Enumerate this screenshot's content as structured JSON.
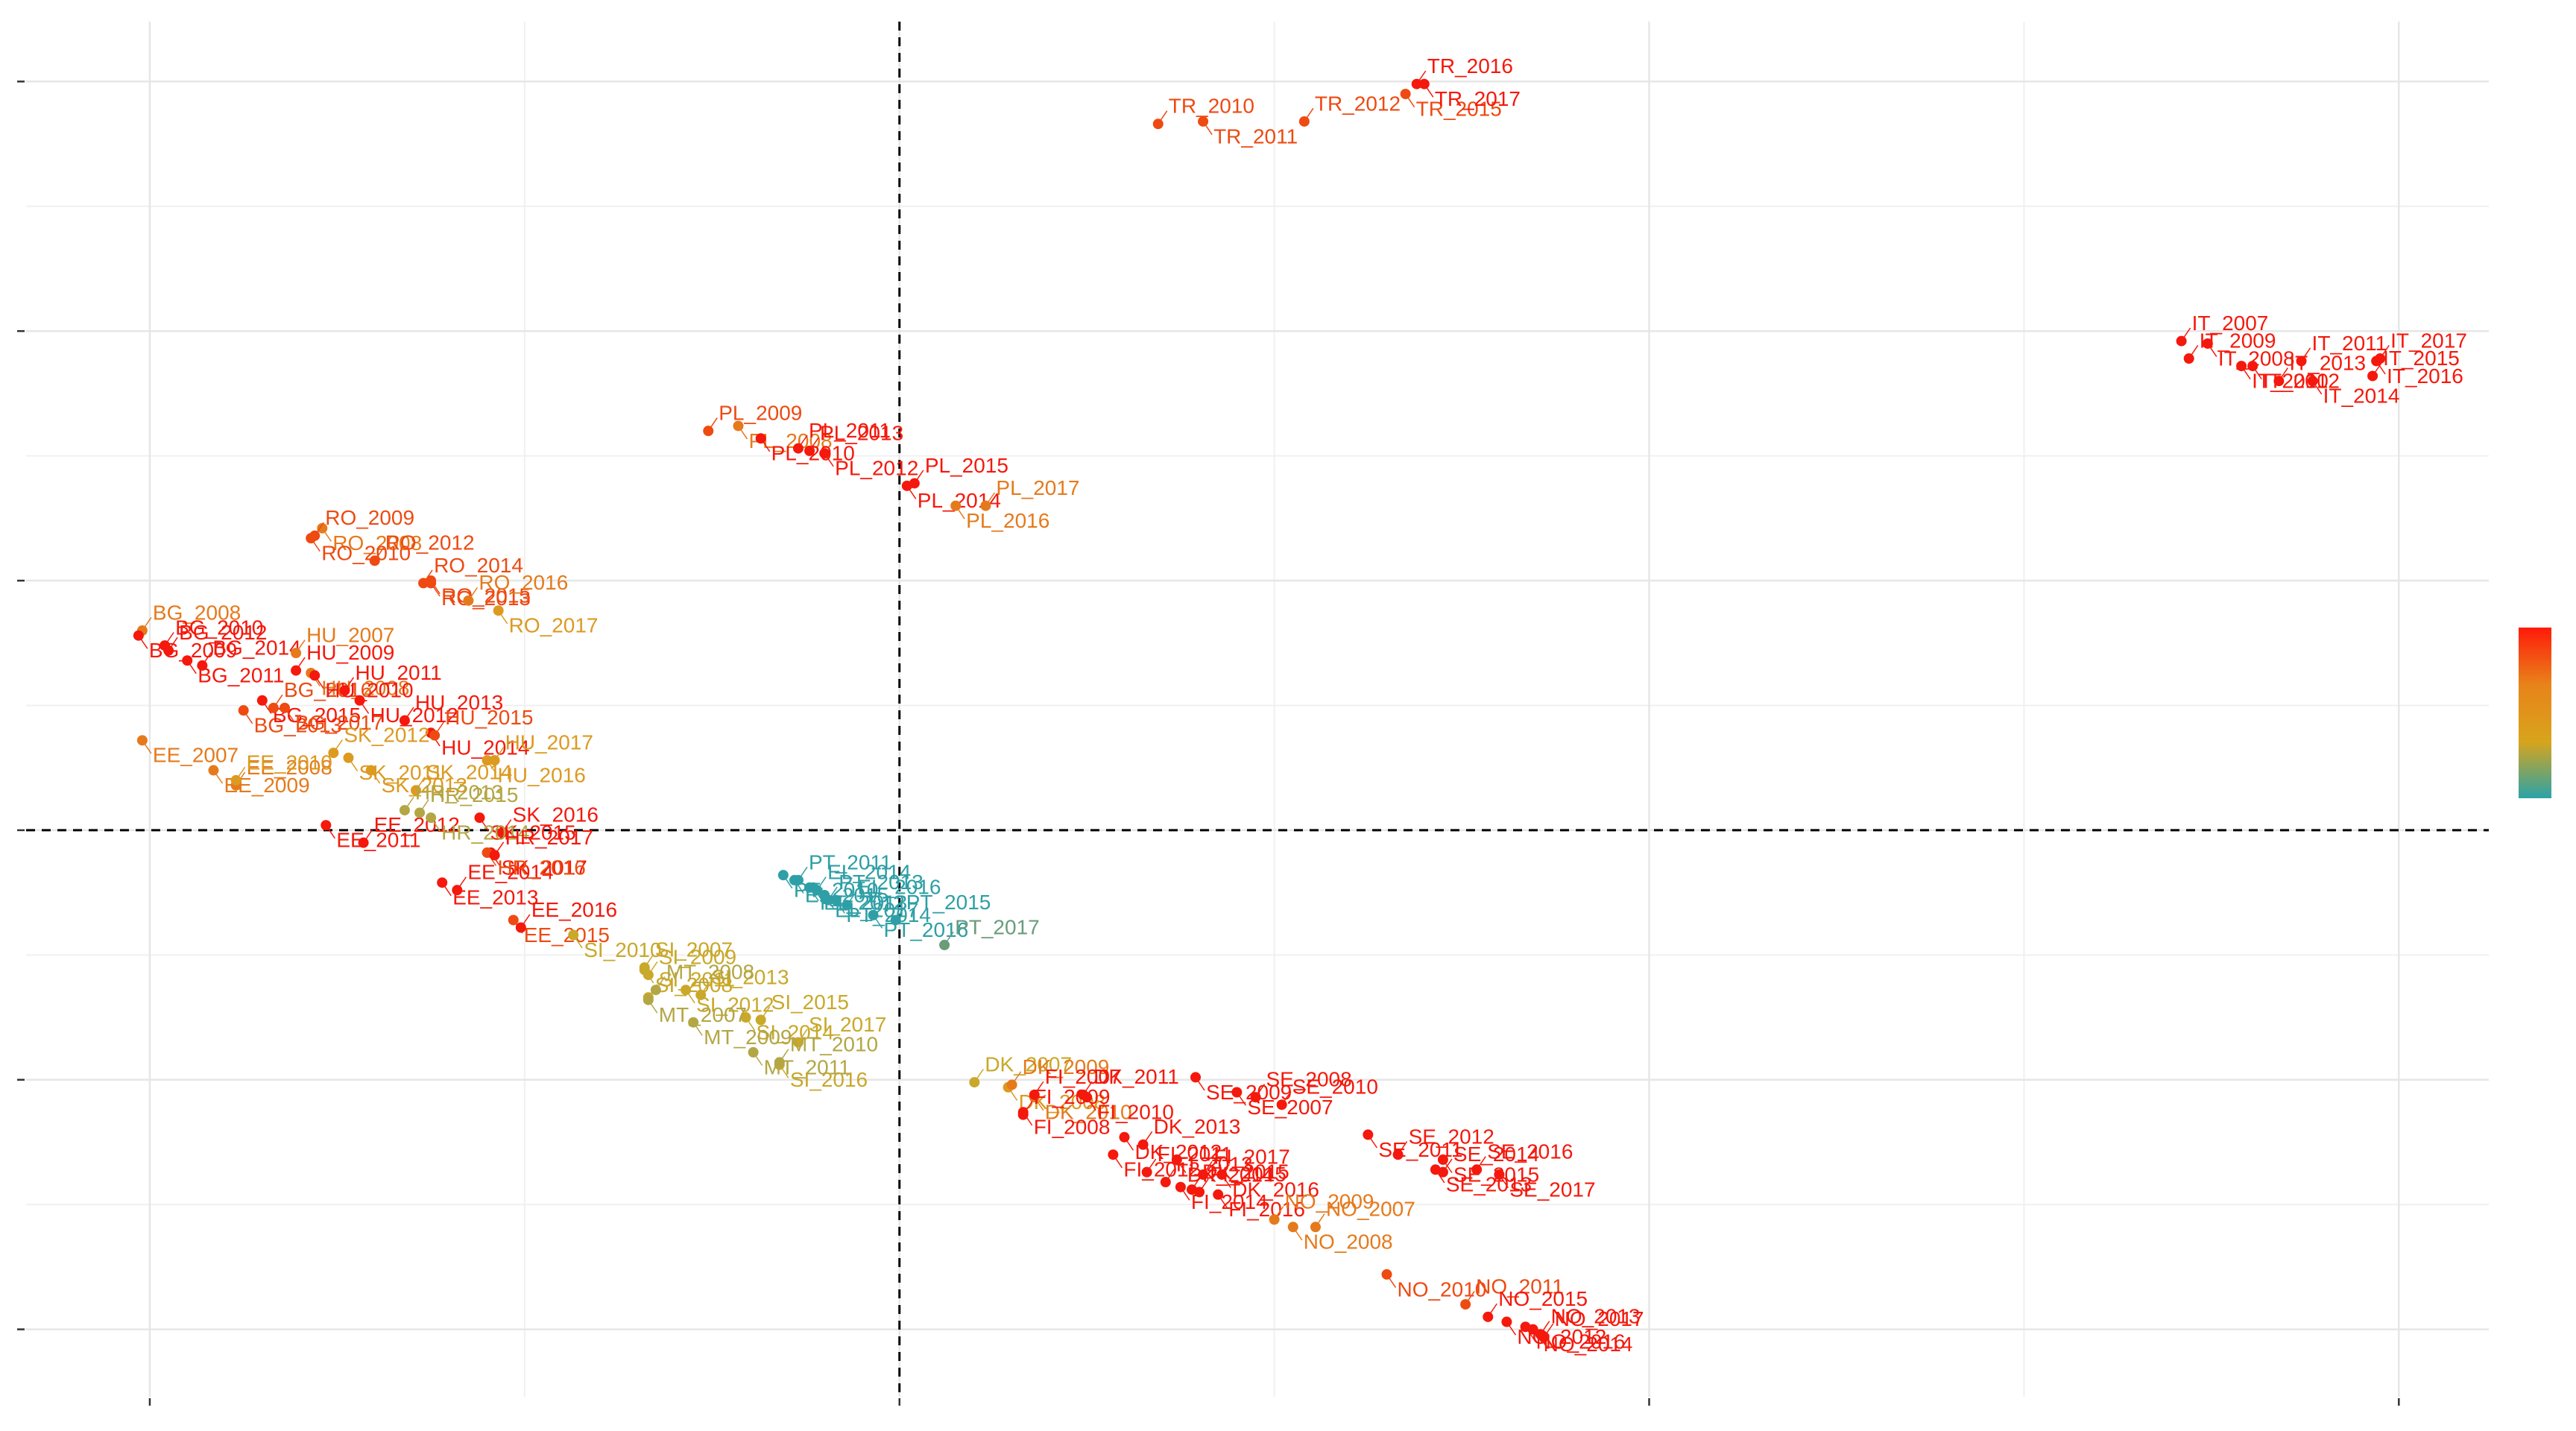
{
  "chart_data": {
    "type": "scatter",
    "xlim": [
      -2.33,
      4.24
    ],
    "ylim": [
      -2.27,
      3.24
    ],
    "xticks": [
      -2,
      0,
      2,
      4
    ],
    "yticks": [
      -2,
      -1,
      0,
      1,
      2,
      3
    ],
    "x_minor_grid": [
      -1,
      1,
      3
    ],
    "y_minor_grid": [
      -1.5,
      -0.5,
      0.5,
      1.5,
      2.5
    ],
    "grid": true,
    "reference_lines": {
      "x": 0,
      "y": 0
    },
    "colorbar": [
      "#ff1a0a",
      "#e8831a",
      "#d8a41c",
      "#2aa3a8"
    ],
    "points": [
      {
        "label": "TR_2010",
        "x": 0.69,
        "y": 2.83,
        "color": "#ee4a12"
      },
      {
        "label": "TR_2011",
        "x": 0.81,
        "y": 2.84,
        "color": "#ee4a12"
      },
      {
        "label": "TR_2012",
        "x": 1.08,
        "y": 2.84,
        "color": "#ee4a12"
      },
      {
        "label": "TR_2015",
        "x": 1.35,
        "y": 2.95,
        "color": "#ee4a12"
      },
      {
        "label": "TR_2016",
        "x": 1.38,
        "y": 2.99,
        "color": "#f5180c"
      },
      {
        "label": "TR_2017",
        "x": 1.4,
        "y": 2.99,
        "color": "#f5180c"
      },
      {
        "label": "IT_2007",
        "x": 3.42,
        "y": 1.96,
        "color": "#f5180c"
      },
      {
        "label": "IT_2008",
        "x": 3.49,
        "y": 1.95,
        "color": "#f5180c"
      },
      {
        "label": "IT_2009",
        "x": 3.44,
        "y": 1.89,
        "color": "#f5180c"
      },
      {
        "label": "IT_2010",
        "x": 3.58,
        "y": 1.86,
        "color": "#f5180c"
      },
      {
        "label": "IT_2011",
        "x": 3.74,
        "y": 1.88,
        "color": "#f5180c"
      },
      {
        "label": "IT_2012",
        "x": 3.61,
        "y": 1.86,
        "color": "#f5180c"
      },
      {
        "label": "IT_2013",
        "x": 3.68,
        "y": 1.8,
        "color": "#f5180c"
      },
      {
        "label": "IT_2014",
        "x": 3.77,
        "y": 1.8,
        "color": "#f5180c"
      },
      {
        "label": "IT_2015",
        "x": 3.93,
        "y": 1.82,
        "color": "#f5180c"
      },
      {
        "label": "IT_2016",
        "x": 3.94,
        "y": 1.88,
        "color": "#f5180c"
      },
      {
        "label": "IT_2017",
        "x": 3.95,
        "y": 1.89,
        "color": "#f5180c"
      },
      {
        "label": "PL_2008",
        "x": -0.43,
        "y": 1.62,
        "color": "#e57a1c"
      },
      {
        "label": "PL_2009",
        "x": -0.51,
        "y": 1.6,
        "color": "#ee4a12"
      },
      {
        "label": "PL_2010",
        "x": -0.37,
        "y": 1.57,
        "color": "#f5180c"
      },
      {
        "label": "PL_2011",
        "x": -0.27,
        "y": 1.53,
        "color": "#f5180c"
      },
      {
        "label": "PL_2012",
        "x": -0.2,
        "y": 1.51,
        "color": "#f5180c"
      },
      {
        "label": "PL_2013",
        "x": -0.24,
        "y": 1.52,
        "color": "#f5180c"
      },
      {
        "label": "PL_2014",
        "x": 0.02,
        "y": 1.38,
        "color": "#f5180c"
      },
      {
        "label": "PL_2015",
        "x": 0.04,
        "y": 1.39,
        "color": "#f5180c"
      },
      {
        "label": "PL_2016",
        "x": 0.15,
        "y": 1.3,
        "color": "#e57a1c"
      },
      {
        "label": "PL_2017",
        "x": 0.23,
        "y": 1.3,
        "color": "#e57a1c"
      },
      {
        "label": "RO_2008",
        "x": -1.54,
        "y": 1.21,
        "color": "#e57a1c"
      },
      {
        "label": "RO_2009",
        "x": -1.56,
        "y": 1.18,
        "color": "#ee4a12"
      },
      {
        "label": "RO_2010",
        "x": -1.57,
        "y": 1.17,
        "color": "#ee4a12"
      },
      {
        "label": "RO_2012",
        "x": -1.4,
        "y": 1.08,
        "color": "#ee4a12"
      },
      {
        "label": "RO_2013",
        "x": -1.25,
        "y": 0.99,
        "color": "#ee4a12"
      },
      {
        "label": "RO_2014",
        "x": -1.27,
        "y": 0.99,
        "color": "#ee4a12"
      },
      {
        "label": "RO_2015",
        "x": -1.25,
        "y": 1.0,
        "color": "#ee4a12"
      },
      {
        "label": "RO_2016",
        "x": -1.15,
        "y": 0.92,
        "color": "#e57a1c"
      },
      {
        "label": "RO_2017",
        "x": -1.07,
        "y": 0.88,
        "color": "#dc9a20"
      },
      {
        "label": "BG_2008",
        "x": -2.02,
        "y": 0.8,
        "color": "#e57a1c"
      },
      {
        "label": "BG_2009",
        "x": -2.03,
        "y": 0.78,
        "color": "#f5180c"
      },
      {
        "label": "BG_2010",
        "x": -1.96,
        "y": 0.74,
        "color": "#f5180c"
      },
      {
        "label": "BG_2011",
        "x": -1.9,
        "y": 0.68,
        "color": "#f5180c"
      },
      {
        "label": "BG_2012",
        "x": -1.95,
        "y": 0.72,
        "color": "#f5180c"
      },
      {
        "label": "BG_2013",
        "x": -1.75,
        "y": 0.48,
        "color": "#ee4a12"
      },
      {
        "label": "BG_2014",
        "x": -1.86,
        "y": 0.66,
        "color": "#f5180c"
      },
      {
        "label": "BG_2015",
        "x": -1.7,
        "y": 0.52,
        "color": "#f5180c"
      },
      {
        "label": "BG_2016",
        "x": -1.67,
        "y": 0.49,
        "color": "#ee4a12"
      },
      {
        "label": "BG_2017",
        "x": -1.64,
        "y": 0.49,
        "color": "#ee4a12"
      },
      {
        "label": "HU_2007",
        "x": -1.61,
        "y": 0.71,
        "color": "#e57a1c"
      },
      {
        "label": "HU_2008",
        "x": -1.57,
        "y": 0.63,
        "color": "#e57a1c"
      },
      {
        "label": "HU_2009",
        "x": -1.61,
        "y": 0.64,
        "color": "#f5180c"
      },
      {
        "label": "HU_2010",
        "x": -1.56,
        "y": 0.62,
        "color": "#f5180c"
      },
      {
        "label": "HU_2011",
        "x": -1.48,
        "y": 0.56,
        "color": "#f5180c"
      },
      {
        "label": "HU_2012",
        "x": -1.44,
        "y": 0.52,
        "color": "#f5180c"
      },
      {
        "label": "HU_2013",
        "x": -1.32,
        "y": 0.44,
        "color": "#f5180c"
      },
      {
        "label": "HU_2014",
        "x": -1.25,
        "y": 0.39,
        "color": "#f5180c"
      },
      {
        "label": "HU_2015",
        "x": -1.24,
        "y": 0.38,
        "color": "#ee4a12"
      },
      {
        "label": "HU_2016",
        "x": -1.1,
        "y": 0.28,
        "color": "#dc9a20"
      },
      {
        "label": "HU_2017",
        "x": -1.08,
        "y": 0.28,
        "color": "#dc9a20"
      },
      {
        "label": "EE_2007",
        "x": -2.02,
        "y": 0.36,
        "color": "#e57a1c"
      },
      {
        "label": "EE_2008",
        "x": -1.77,
        "y": 0.18,
        "color": "#e57a1c"
      },
      {
        "label": "EE_2009",
        "x": -1.83,
        "y": 0.24,
        "color": "#e57a1c"
      },
      {
        "label": "EE_2010",
        "x": -1.77,
        "y": 0.2,
        "color": "#dc9a20"
      },
      {
        "label": "EE_2011",
        "x": -1.53,
        "y": 0.02,
        "color": "#f5180c"
      },
      {
        "label": "EE_2012",
        "x": -1.43,
        "y": -0.05,
        "color": "#f5180c"
      },
      {
        "label": "EE_2013",
        "x": -1.22,
        "y": -0.21,
        "color": "#f5180c"
      },
      {
        "label": "EE_2014",
        "x": -1.18,
        "y": -0.24,
        "color": "#f5180c"
      },
      {
        "label": "EE_2015",
        "x": -1.03,
        "y": -0.36,
        "color": "#ee4a12"
      },
      {
        "label": "EE_2016",
        "x": -1.01,
        "y": -0.39,
        "color": "#f5180c"
      },
      {
        "label": "SK_2011",
        "x": -1.47,
        "y": 0.29,
        "color": "#dc9a20"
      },
      {
        "label": "SK_2012",
        "x": -1.51,
        "y": 0.31,
        "color": "#dc9a20"
      },
      {
        "label": "SK_2013",
        "x": -1.41,
        "y": 0.24,
        "color": "#dc9a20"
      },
      {
        "label": "SK_2014",
        "x": -1.29,
        "y": 0.16,
        "color": "#dc9a20"
      },
      {
        "label": "SK_2015",
        "x": -1.12,
        "y": 0.05,
        "color": "#f5180c"
      },
      {
        "label": "SK_2016",
        "x": -1.06,
        "y": -0.01,
        "color": "#f5180c"
      },
      {
        "label": "SK_2017",
        "x": -1.09,
        "y": -0.09,
        "color": "#f5180c"
      },
      {
        "label": "HR_2013",
        "x": -1.32,
        "y": 0.08,
        "color": "#b3a645"
      },
      {
        "label": "HR_2014",
        "x": -1.25,
        "y": 0.05,
        "color": "#b3a645"
      },
      {
        "label": "HR_2015",
        "x": -1.28,
        "y": 0.07,
        "color": "#b3a645"
      },
      {
        "label": "HR_2016",
        "x": -1.1,
        "y": -0.09,
        "color": "#ee4a12"
      },
      {
        "label": "HR_2017",
        "x": -1.08,
        "y": -0.1,
        "color": "#f5180c"
      },
      {
        "label": "PT_2010",
        "x": -0.31,
        "y": -0.18,
        "color": "#2e9fa6"
      },
      {
        "label": "PT_2011",
        "x": -0.27,
        "y": -0.2,
        "color": "#2e9fa6"
      },
      {
        "label": "PT_2012",
        "x": -0.24,
        "y": -0.23,
        "color": "#2e9fa6"
      },
      {
        "label": "PT_2013",
        "x": -0.19,
        "y": -0.28,
        "color": "#2e9fa6"
      },
      {
        "label": "PT_2014",
        "x": -0.17,
        "y": -0.28,
        "color": "#2e9fa6"
      },
      {
        "label": "PT_2015",
        "x": -0.01,
        "y": -0.36,
        "color": "#2e9fa6"
      },
      {
        "label": "PT_2016",
        "x": -0.07,
        "y": -0.34,
        "color": "#2e9fa6"
      },
      {
        "label": "PT_2017",
        "x": 0.12,
        "y": -0.46,
        "color": "#6a9c7a"
      },
      {
        "label": "EL_2013",
        "x": -0.23,
        "y": -0.23,
        "color": "#2e9fa6"
      },
      {
        "label": "EL_2014",
        "x": -0.22,
        "y": -0.24,
        "color": "#2e9fa6"
      },
      {
        "label": "EL_2015",
        "x": -0.28,
        "y": -0.2,
        "color": "#2e9fa6"
      },
      {
        "label": "EL_2016",
        "x": -0.14,
        "y": -0.3,
        "color": "#2e9fa6"
      },
      {
        "label": "EL_2017",
        "x": -0.2,
        "y": -0.26,
        "color": "#2e9fa6"
      },
      {
        "label": "SI_2007",
        "x": -0.68,
        "y": -0.55,
        "color": "#c9a82a"
      },
      {
        "label": "SI_2008",
        "x": -0.68,
        "y": -0.56,
        "color": "#c9a82a"
      },
      {
        "label": "SI_2009",
        "x": -0.67,
        "y": -0.58,
        "color": "#c9a82a"
      },
      {
        "label": "SI_2010",
        "x": -0.87,
        "y": -0.42,
        "color": "#c9a82a"
      },
      {
        "label": "SI_2011",
        "x": -0.67,
        "y": -0.67,
        "color": "#c9a82a"
      },
      {
        "label": "SI_2012",
        "x": -0.57,
        "y": -0.64,
        "color": "#c9a82a"
      },
      {
        "label": "SI_2013",
        "x": -0.53,
        "y": -0.66,
        "color": "#c9a82a"
      },
      {
        "label": "SI_2014",
        "x": -0.41,
        "y": -0.75,
        "color": "#c9a82a"
      },
      {
        "label": "SI_2015",
        "x": -0.37,
        "y": -0.76,
        "color": "#c9a82a"
      },
      {
        "label": "SI_2016",
        "x": -0.32,
        "y": -0.94,
        "color": "#c9a82a"
      },
      {
        "label": "SI_2017",
        "x": -0.27,
        "y": -0.85,
        "color": "#c9a82a"
      },
      {
        "label": "MT_2007",
        "x": -0.67,
        "y": -0.68,
        "color": "#b3a645"
      },
      {
        "label": "MT_2008",
        "x": -0.65,
        "y": -0.64,
        "color": "#b3a645"
      },
      {
        "label": "MT_2009",
        "x": -0.55,
        "y": -0.77,
        "color": "#b3a645"
      },
      {
        "label": "MT_2010",
        "x": -0.32,
        "y": -0.93,
        "color": "#b3a645"
      },
      {
        "label": "MT_2011",
        "x": -0.39,
        "y": -0.89,
        "color": "#b3a645"
      },
      {
        "label": "DK_2007",
        "x": 0.2,
        "y": -1.01,
        "color": "#c9a82a"
      },
      {
        "label": "DK_2008",
        "x": 0.29,
        "y": -1.03,
        "color": "#dc9a20"
      },
      {
        "label": "DK_2009",
        "x": 0.3,
        "y": -1.02,
        "color": "#e57a1c"
      },
      {
        "label": "DK_2010",
        "x": 0.36,
        "y": -1.07,
        "color": "#e57a1c"
      },
      {
        "label": "DK_2011",
        "x": 0.49,
        "y": -1.06,
        "color": "#f5180c"
      },
      {
        "label": "DK_2012",
        "x": 0.6,
        "y": -1.23,
        "color": "#f5180c"
      },
      {
        "label": "DK_2013",
        "x": 0.65,
        "y": -1.26,
        "color": "#f5180c"
      },
      {
        "label": "DK_2014",
        "x": 0.74,
        "y": -1.32,
        "color": "#f5180c"
      },
      {
        "label": "DK_2015",
        "x": 0.78,
        "y": -1.44,
        "color": "#f5180c"
      },
      {
        "label": "DK_2016",
        "x": 0.86,
        "y": -1.38,
        "color": "#f5180c"
      },
      {
        "label": "FI_2007",
        "x": 0.36,
        "y": -1.06,
        "color": "#f5180c"
      },
      {
        "label": "FI_2008",
        "x": 0.33,
        "y": -1.13,
        "color": "#f5180c"
      },
      {
        "label": "FI_2009",
        "x": 0.33,
        "y": -1.14,
        "color": "#f5180c"
      },
      {
        "label": "FI_2010",
        "x": 0.5,
        "y": -1.07,
        "color": "#f5180c"
      },
      {
        "label": "FI_2011",
        "x": 0.66,
        "y": -1.37,
        "color": "#f5180c"
      },
      {
        "label": "FI_2012",
        "x": 0.57,
        "y": -1.3,
        "color": "#f5180c"
      },
      {
        "label": "FI_2013",
        "x": 0.71,
        "y": -1.41,
        "color": "#f5180c"
      },
      {
        "label": "FI_2014",
        "x": 0.75,
        "y": -1.43,
        "color": "#f5180c"
      },
      {
        "label": "FI_2015",
        "x": 0.8,
        "y": -1.45,
        "color": "#f5180c"
      },
      {
        "label": "FI_2016",
        "x": 0.85,
        "y": -1.46,
        "color": "#f5180c"
      },
      {
        "label": "FI_2017",
        "x": 0.81,
        "y": -1.38,
        "color": "#f5180c"
      },
      {
        "label": "SE_2007",
        "x": 0.9,
        "y": -1.05,
        "color": "#f5180c"
      },
      {
        "label": "SE_2008",
        "x": 0.95,
        "y": -1.07,
        "color": "#f5180c"
      },
      {
        "label": "SE_2009",
        "x": 0.79,
        "y": -0.99,
        "color": "#f5180c"
      },
      {
        "label": "SE_2010",
        "x": 1.02,
        "y": -1.1,
        "color": "#f5180c"
      },
      {
        "label": "SE_2011",
        "x": 1.25,
        "y": -1.22,
        "color": "#f5180c"
      },
      {
        "label": "SE_2012",
        "x": 1.33,
        "y": -1.3,
        "color": "#f5180c"
      },
      {
        "label": "SE_2013",
        "x": 1.43,
        "y": -1.36,
        "color": "#f5180c"
      },
      {
        "label": "SE_2014",
        "x": 1.45,
        "y": -1.37,
        "color": "#f5180c"
      },
      {
        "label": "SE_2015",
        "x": 1.45,
        "y": -1.32,
        "color": "#f5180c"
      },
      {
        "label": "SE_2016",
        "x": 1.54,
        "y": -1.36,
        "color": "#f5180c"
      },
      {
        "label": "SE_2017",
        "x": 1.6,
        "y": -1.38,
        "color": "#f5180c"
      },
      {
        "label": "NO_2007",
        "x": 1.11,
        "y": -1.59,
        "color": "#e57a1c"
      },
      {
        "label": "NO_2008",
        "x": 1.05,
        "y": -1.59,
        "color": "#e57a1c"
      },
      {
        "label": "NO_2009",
        "x": 1.0,
        "y": -1.56,
        "color": "#e57a1c"
      },
      {
        "label": "NO_2010",
        "x": 1.3,
        "y": -1.78,
        "color": "#ee4a12"
      },
      {
        "label": "NO_2011",
        "x": 1.51,
        "y": -1.9,
        "color": "#ee4a12"
      },
      {
        "label": "NO_2012",
        "x": 1.62,
        "y": -1.97,
        "color": "#f5180c"
      },
      {
        "label": "NO_2013",
        "x": 1.71,
        "y": -2.02,
        "color": "#f5180c"
      },
      {
        "label": "NO_2014",
        "x": 1.69,
        "y": -2.0,
        "color": "#f5180c"
      },
      {
        "label": "NO_2015",
        "x": 1.57,
        "y": -1.95,
        "color": "#f5180c"
      },
      {
        "label": "NO_2016",
        "x": 1.67,
        "y": -1.99,
        "color": "#f5180c"
      },
      {
        "label": "NO_2017",
        "x": 1.72,
        "y": -2.03,
        "color": "#f5180c"
      }
    ]
  }
}
